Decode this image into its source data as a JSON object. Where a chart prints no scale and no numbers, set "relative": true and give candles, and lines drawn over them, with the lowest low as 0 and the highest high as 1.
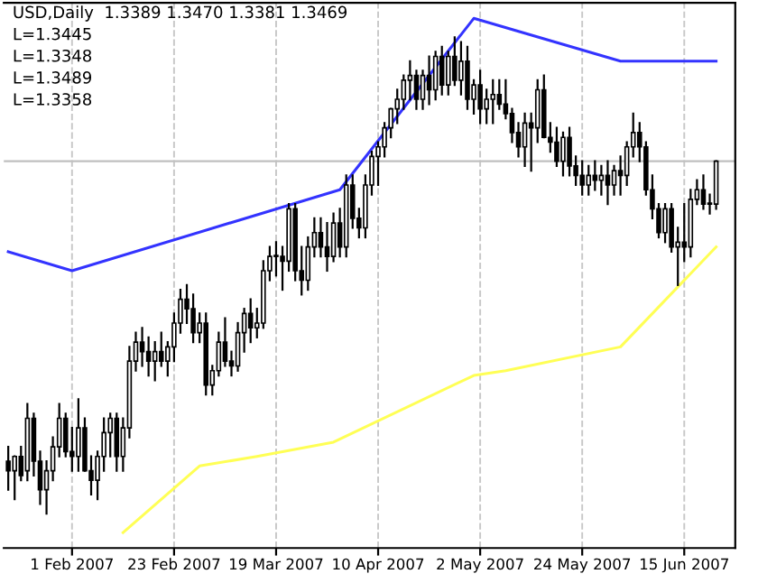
{
  "chart_data": {
    "type": "candlestick",
    "relative": true,
    "title": "USD,Daily  1.3389 1.3470 1.3381 1.3469",
    "annotations": [
      "L=1.3445",
      "L=1.3348",
      "L=1.3489",
      "L=1.3358"
    ],
    "categories": [
      null,
      null,
      null,
      null,
      null,
      null,
      null,
      null,
      null,
      null,
      "1 Feb 2007",
      null,
      null,
      null,
      null,
      null,
      null,
      null,
      null,
      null,
      null,
      null,
      null,
      null,
      null,
      null,
      "23 Feb 2007",
      null,
      null,
      null,
      null,
      null,
      null,
      null,
      null,
      null,
      null,
      null,
      null,
      null,
      null,
      null,
      "19 Mar 2007",
      null,
      null,
      null,
      null,
      null,
      null,
      null,
      null,
      null,
      null,
      null,
      null,
      null,
      null,
      null,
      "10 Apr 2007",
      null,
      null,
      null,
      null,
      null,
      null,
      null,
      null,
      null,
      null,
      null,
      null,
      null,
      null,
      null,
      "2 May 2007",
      null,
      null,
      null,
      null,
      null,
      null,
      null,
      null,
      null,
      null,
      null,
      null,
      null,
      null,
      null,
      "24 May 2007",
      null,
      null,
      null,
      null,
      null,
      null,
      null,
      null,
      null,
      null,
      null,
      null,
      null,
      null,
      null,
      "15 Jun 2007",
      null,
      null,
      null,
      null,
      null
    ],
    "ohlc": [
      [
        0.11,
        0.14,
        0.05,
        0.09
      ],
      [
        0.09,
        0.12,
        0.03,
        0.12
      ],
      [
        0.12,
        0.14,
        0.07,
        0.08
      ],
      [
        0.09,
        0.23,
        0.07,
        0.2
      ],
      [
        0.2,
        0.21,
        0.08,
        0.11
      ],
      [
        0.11,
        0.13,
        0.02,
        0.05
      ],
      [
        0.05,
        0.11,
        0.0,
        0.09
      ],
      [
        0.09,
        0.16,
        0.07,
        0.14
      ],
      [
        0.14,
        0.23,
        0.12,
        0.2
      ],
      [
        0.2,
        0.21,
        0.12,
        0.13
      ],
      [
        0.13,
        0.18,
        0.09,
        0.12
      ],
      [
        0.12,
        0.24,
        0.09,
        0.18
      ],
      [
        0.18,
        0.2,
        0.09,
        0.09
      ],
      [
        0.09,
        0.12,
        0.04,
        0.07
      ],
      [
        0.07,
        0.13,
        0.03,
        0.12
      ],
      [
        0.12,
        0.2,
        0.09,
        0.17
      ],
      [
        0.17,
        0.21,
        0.12,
        0.2
      ],
      [
        0.2,
        0.21,
        0.09,
        0.12
      ],
      [
        0.12,
        0.2,
        0.09,
        0.18
      ],
      [
        0.18,
        0.35,
        0.16,
        0.32
      ],
      [
        0.32,
        0.38,
        0.3,
        0.36
      ],
      [
        0.36,
        0.39,
        0.31,
        0.34
      ],
      [
        0.34,
        0.37,
        0.29,
        0.32
      ],
      [
        0.32,
        0.36,
        0.28,
        0.34
      ],
      [
        0.34,
        0.38,
        0.31,
        0.32
      ],
      [
        0.32,
        0.36,
        0.29,
        0.35
      ],
      [
        0.35,
        0.42,
        0.32,
        0.4
      ],
      [
        0.4,
        0.47,
        0.38,
        0.45
      ],
      [
        0.45,
        0.48,
        0.4,
        0.43
      ],
      [
        0.43,
        0.46,
        0.36,
        0.38
      ],
      [
        0.38,
        0.42,
        0.36,
        0.4
      ],
      [
        0.4,
        0.42,
        0.25,
        0.27
      ],
      [
        0.27,
        0.31,
        0.25,
        0.3
      ],
      [
        0.3,
        0.38,
        0.29,
        0.36
      ],
      [
        0.36,
        0.41,
        0.31,
        0.32
      ],
      [
        0.32,
        0.34,
        0.29,
        0.31
      ],
      [
        0.31,
        0.4,
        0.3,
        0.38
      ],
      [
        0.38,
        0.43,
        0.34,
        0.42
      ],
      [
        0.42,
        0.45,
        0.36,
        0.39
      ],
      [
        0.39,
        0.43,
        0.37,
        0.4
      ],
      [
        0.4,
        0.53,
        0.39,
        0.51
      ],
      [
        0.51,
        0.56,
        0.49,
        0.54
      ],
      [
        0.54,
        0.57,
        0.5,
        0.54
      ],
      [
        0.54,
        0.56,
        0.47,
        0.53
      ],
      [
        0.53,
        0.65,
        0.51,
        0.64
      ],
      [
        0.64,
        0.65,
        0.49,
        0.51
      ],
      [
        0.51,
        0.56,
        0.46,
        0.49
      ],
      [
        0.49,
        0.58,
        0.47,
        0.56
      ],
      [
        0.56,
        0.62,
        0.54,
        0.59
      ],
      [
        0.59,
        0.62,
        0.54,
        0.56
      ],
      [
        0.56,
        0.61,
        0.51,
        0.54
      ],
      [
        0.54,
        0.63,
        0.53,
        0.61
      ],
      [
        0.61,
        0.64,
        0.54,
        0.56
      ],
      [
        0.56,
        0.71,
        0.54,
        0.69
      ],
      [
        0.69,
        0.71,
        0.6,
        0.62
      ],
      [
        0.62,
        0.64,
        0.58,
        0.6
      ],
      [
        0.6,
        0.71,
        0.58,
        0.69
      ],
      [
        0.69,
        0.76,
        0.67,
        0.75
      ],
      [
        0.75,
        0.78,
        0.69,
        0.77
      ],
      [
        0.77,
        0.82,
        0.75,
        0.81
      ],
      [
        0.81,
        0.85,
        0.79,
        0.85
      ],
      [
        0.85,
        0.89,
        0.82,
        0.87
      ],
      [
        0.87,
        0.92,
        0.85,
        0.91
      ],
      [
        0.91,
        0.95,
        0.87,
        0.92
      ],
      [
        0.92,
        0.93,
        0.85,
        0.87
      ],
      [
        0.87,
        0.93,
        0.85,
        0.92
      ],
      [
        0.92,
        0.96,
        0.86,
        0.89
      ],
      [
        0.89,
        0.97,
        0.87,
        0.96
      ],
      [
        0.96,
        0.98,
        0.88,
        0.9
      ],
      [
        0.9,
        0.97,
        0.88,
        0.96
      ],
      [
        0.96,
        1.0,
        0.9,
        0.91
      ],
      [
        0.91,
        0.99,
        0.88,
        0.95
      ],
      [
        0.95,
        0.98,
        0.85,
        0.87
      ],
      [
        0.87,
        0.91,
        0.84,
        0.9
      ],
      [
        0.9,
        0.93,
        0.82,
        0.85
      ],
      [
        0.85,
        0.89,
        0.82,
        0.87
      ],
      [
        0.87,
        0.91,
        0.82,
        0.88
      ],
      [
        0.88,
        0.91,
        0.85,
        0.86
      ],
      [
        0.86,
        0.91,
        0.83,
        0.84
      ],
      [
        0.84,
        0.85,
        0.78,
        0.8
      ],
      [
        0.8,
        0.82,
        0.75,
        0.77
      ],
      [
        0.77,
        0.84,
        0.73,
        0.82
      ],
      [
        0.82,
        0.84,
        0.72,
        0.81
      ],
      [
        0.81,
        0.91,
        0.78,
        0.89
      ],
      [
        0.89,
        0.92,
        0.79,
        0.79
      ],
      [
        0.79,
        0.82,
        0.76,
        0.78
      ],
      [
        0.78,
        0.81,
        0.73,
        0.74
      ],
      [
        0.74,
        0.8,
        0.71,
        0.79
      ],
      [
        0.79,
        0.81,
        0.71,
        0.73
      ],
      [
        0.73,
        0.75,
        0.69,
        0.71
      ],
      [
        0.71,
        0.74,
        0.67,
        0.69
      ],
      [
        0.69,
        0.73,
        0.67,
        0.71
      ],
      [
        0.71,
        0.74,
        0.68,
        0.7
      ],
      [
        0.7,
        0.73,
        0.67,
        0.71
      ],
      [
        0.71,
        0.74,
        0.65,
        0.69
      ],
      [
        0.69,
        0.73,
        0.67,
        0.72
      ],
      [
        0.72,
        0.75,
        0.67,
        0.71
      ],
      [
        0.71,
        0.78,
        0.69,
        0.77
      ],
      [
        0.77,
        0.84,
        0.75,
        0.8
      ],
      [
        0.8,
        0.82,
        0.74,
        0.77
      ],
      [
        0.77,
        0.78,
        0.67,
        0.68
      ],
      [
        0.68,
        0.71,
        0.62,
        0.64
      ],
      [
        0.64,
        0.65,
        0.58,
        0.59
      ],
      [
        0.59,
        0.65,
        0.57,
        0.64
      ],
      [
        0.64,
        0.65,
        0.55,
        0.56
      ],
      [
        0.56,
        0.6,
        0.48,
        0.57
      ],
      [
        0.57,
        0.65,
        0.53,
        0.56
      ],
      [
        0.56,
        0.68,
        0.54,
        0.66
      ],
      [
        0.66,
        0.7,
        0.65,
        0.68
      ],
      [
        0.68,
        0.71,
        0.64,
        0.65
      ],
      [
        0.65,
        0.67,
        0.63,
        0.65
      ],
      [
        0.65,
        0.74,
        0.64,
        0.74
      ]
    ],
    "series": [
      {
        "type": "line",
        "color": "#3333ff",
        "values": [
          0.55,
          null,
          null,
          null,
          null,
          null,
          null,
          null,
          null,
          null,
          0.51,
          null,
          null,
          null,
          null,
          null,
          null,
          null,
          null,
          null,
          null,
          null,
          null,
          null,
          null,
          null,
          null,
          null,
          null,
          null,
          null,
          null,
          null,
          null,
          null,
          null,
          null,
          null,
          null,
          null,
          null,
          null,
          null,
          null,
          null,
          null,
          null,
          null,
          null,
          null,
          null,
          null,
          0.68,
          null,
          null,
          null,
          null,
          null,
          null,
          null,
          null,
          null,
          null,
          null,
          null,
          null,
          null,
          null,
          null,
          null,
          null,
          null,
          null,
          1.04,
          null,
          null,
          null,
          null,
          null,
          null,
          null,
          null,
          null,
          null,
          null,
          null,
          null,
          null,
          null,
          null,
          null,
          null,
          null,
          null,
          null,
          null,
          0.95,
          null,
          null,
          null,
          null,
          null,
          null,
          null,
          null,
          null,
          null,
          null,
          null,
          null,
          null,
          0.95
        ]
      },
      {
        "type": "line",
        "color": "#ffff55",
        "values": [
          null,
          null,
          null,
          null,
          null,
          null,
          null,
          null,
          null,
          null,
          null,
          null,
          null,
          null,
          null,
          null,
          null,
          null,
          -0.04,
          null,
          null,
          null,
          null,
          null,
          null,
          null,
          null,
          null,
          null,
          null,
          0.1,
          null,
          null,
          null,
          null,
          null,
          null,
          null,
          null,
          0.12,
          null,
          null,
          null,
          null,
          null,
          null,
          null,
          null,
          null,
          null,
          null,
          0.15,
          null,
          null,
          null,
          null,
          null,
          null,
          null,
          null,
          null,
          null,
          null,
          null,
          null,
          null,
          null,
          null,
          null,
          null,
          null,
          null,
          null,
          0.29,
          null,
          null,
          null,
          null,
          0.3,
          null,
          null,
          null,
          null,
          null,
          null,
          null,
          null,
          null,
          null,
          null,
          null,
          null,
          null,
          null,
          null,
          null,
          0.35,
          null,
          null,
          null,
          null,
          null,
          null,
          null,
          null,
          null,
          null,
          null,
          null,
          null,
          null,
          0.56
        ]
      }
    ],
    "ref_lines": [
      {
        "axis": "y",
        "value": 0.74,
        "color": "#c0c0c0"
      }
    ],
    "grid": "x",
    "tick_labels": "x"
  }
}
